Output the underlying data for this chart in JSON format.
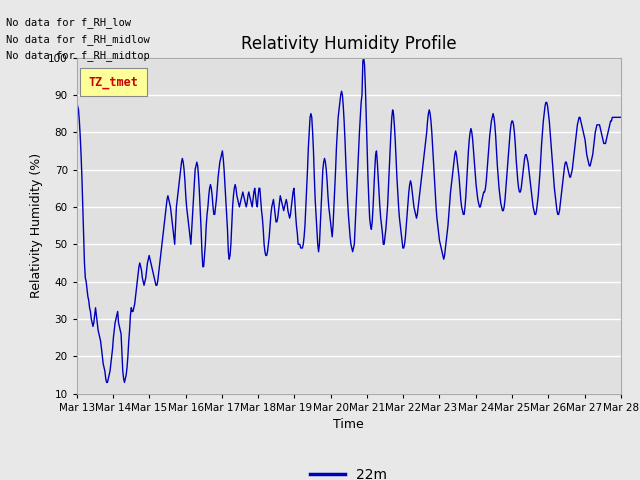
{
  "title": "Relativity Humidity Profile",
  "xlabel": "Time",
  "ylabel": "Relativity Humidity (%)",
  "ylim": [
    10,
    100
  ],
  "yticks": [
    10,
    20,
    30,
    40,
    50,
    60,
    70,
    80,
    90,
    100
  ],
  "line_color": "#0000bb",
  "line_label": "22m",
  "background_color": "#e8e8e8",
  "axes_bg_color": "#e0e0e0",
  "no_data_texts": [
    "No data for f_RH_low",
    "No data for f_RH_midlow",
    "No data for f_RH_midtop"
  ],
  "legend_box_color": "#ffff99",
  "legend_text_color": "#cc0000",
  "legend_label": "TZ_tmet",
  "xtick_labels": [
    "Mar 13",
    "Mar 14",
    "Mar 15",
    "Mar 16",
    "Mar 17",
    "Mar 18",
    "Mar 19",
    "Mar 20",
    "Mar 21",
    "Mar 22",
    "Mar 23",
    "Mar 24",
    "Mar 25",
    "Mar 26",
    "Mar 27",
    "Mar 28"
  ],
  "rh_values": [
    88,
    87,
    86,
    83,
    79,
    74,
    68,
    60,
    52,
    45,
    41,
    40,
    38,
    36,
    35,
    33,
    32,
    30,
    29,
    28,
    29,
    31,
    33,
    31,
    29,
    27,
    26,
    25,
    24,
    22,
    20,
    18,
    17,
    16,
    14,
    13,
    13,
    14,
    15,
    16,
    18,
    20,
    22,
    25,
    27,
    29,
    30,
    31,
    32,
    29,
    28,
    27,
    26,
    21,
    16,
    14,
    13,
    14,
    15,
    17,
    20,
    24,
    27,
    31,
    33,
    32,
    32,
    33,
    34,
    36,
    38,
    40,
    42,
    44,
    45,
    44,
    43,
    41,
    40,
    39,
    40,
    41,
    43,
    45,
    46,
    47,
    46,
    45,
    44,
    43,
    42,
    41,
    40,
    39,
    39,
    40,
    42,
    44,
    46,
    48,
    50,
    52,
    54,
    56,
    58,
    60,
    62,
    63,
    62,
    61,
    60,
    58,
    56,
    54,
    52,
    50,
    55,
    60,
    62,
    64,
    66,
    68,
    70,
    72,
    73,
    72,
    70,
    67,
    63,
    60,
    58,
    56,
    54,
    52,
    50,
    54,
    58,
    62,
    66,
    70,
    71,
    72,
    71,
    68,
    64,
    59,
    54,
    48,
    44,
    44,
    47,
    50,
    55,
    58,
    60,
    63,
    65,
    66,
    65,
    63,
    60,
    58,
    58,
    60,
    62,
    65,
    68,
    70,
    72,
    73,
    74,
    75,
    73,
    70,
    66,
    62,
    58,
    54,
    48,
    46,
    47,
    50,
    55,
    60,
    63,
    65,
    66,
    65,
    63,
    62,
    61,
    60,
    61,
    62,
    63,
    64,
    63,
    62,
    61,
    60,
    61,
    63,
    64,
    63,
    62,
    61,
    60,
    62,
    64,
    65,
    63,
    61,
    60,
    63,
    65,
    65,
    62,
    59,
    57,
    54,
    50,
    48,
    47,
    47,
    48,
    50,
    52,
    55,
    58,
    60,
    61,
    62,
    60,
    58,
    56,
    56,
    57,
    59,
    61,
    63,
    62,
    61,
    60,
    59,
    60,
    61,
    62,
    61,
    59,
    58,
    57,
    58,
    60,
    62,
    64,
    65,
    62,
    58,
    55,
    53,
    50,
    50,
    50,
    49,
    49,
    49,
    50,
    52,
    55,
    60,
    65,
    70,
    76,
    80,
    84,
    85,
    84,
    80,
    75,
    68,
    62,
    58,
    54,
    50,
    48,
    50,
    55,
    60,
    65,
    70,
    72,
    73,
    72,
    70,
    67,
    63,
    60,
    58,
    56,
    54,
    52,
    55,
    60,
    65,
    70,
    76,
    80,
    84,
    86,
    88,
    90,
    91,
    90,
    87,
    83,
    78,
    72,
    67,
    62,
    58,
    55,
    52,
    50,
    49,
    48,
    49,
    50,
    55,
    60,
    65,
    70,
    75,
    80,
    84,
    88,
    90,
    99,
    100,
    98,
    92,
    84,
    76,
    68,
    62,
    57,
    55,
    54,
    56,
    60,
    65,
    70,
    74,
    75,
    72,
    68,
    64,
    60,
    57,
    55,
    53,
    50,
    50,
    52,
    54,
    57,
    60,
    65,
    70,
    75,
    80,
    84,
    86,
    85,
    82,
    78,
    73,
    68,
    64,
    60,
    57,
    55,
    53,
    51,
    49,
    49,
    50,
    52,
    55,
    58,
    61,
    64,
    66,
    67,
    66,
    64,
    62,
    60,
    59,
    58,
    57,
    58,
    60,
    62,
    64,
    66,
    68,
    70,
    72,
    74,
    76,
    78,
    80,
    83,
    85,
    86,
    85,
    83,
    80,
    76,
    72,
    68,
    64,
    60,
    57,
    55,
    53,
    51,
    50,
    49,
    48,
    47,
    46,
    47,
    49,
    51,
    53,
    55,
    58,
    61,
    64,
    66,
    68,
    70,
    72,
    74,
    75,
    74,
    72,
    70,
    68,
    65,
    62,
    60,
    59,
    58,
    58,
    60,
    63,
    67,
    71,
    75,
    78,
    80,
    81,
    80,
    78,
    75,
    72,
    69,
    66,
    64,
    62,
    61,
    60,
    60,
    61,
    62,
    63,
    64,
    64,
    65,
    67,
    70,
    73,
    76,
    79,
    81,
    83,
    84,
    85,
    84,
    82,
    79,
    75,
    71,
    68,
    65,
    63,
    61,
    60,
    59,
    59,
    60,
    62,
    65,
    68,
    71,
    74,
    77,
    80,
    82,
    83,
    83,
    82,
    80,
    77,
    73,
    70,
    67,
    65,
    64,
    64,
    65,
    67,
    69,
    71,
    73,
    74,
    74,
    73,
    72,
    70,
    68,
    66,
    64,
    62,
    60,
    59,
    58,
    58,
    59,
    61,
    63,
    66,
    69,
    73,
    77,
    80,
    83,
    85,
    87,
    88,
    88,
    87,
    85,
    83,
    80,
    77,
    74,
    71,
    68,
    65,
    63,
    61,
    59,
    58,
    58,
    59,
    61,
    63,
    65,
    67,
    69,
    71,
    72,
    72,
    71,
    70,
    69,
    68,
    68,
    69,
    70,
    72,
    74,
    76,
    78,
    80,
    82,
    83,
    84,
    84,
    83,
    82,
    81,
    80,
    79,
    78,
    76,
    74,
    73,
    72,
    71,
    71,
    72,
    73,
    74,
    76,
    78,
    80,
    81,
    82,
    82,
    82,
    82,
    81,
    80,
    79,
    78,
    77,
    77,
    77,
    78,
    79,
    80,
    81,
    82,
    83,
    83,
    84,
    84,
    84,
    84,
    84,
    84,
    84,
    84,
    84,
    84,
    84
  ]
}
